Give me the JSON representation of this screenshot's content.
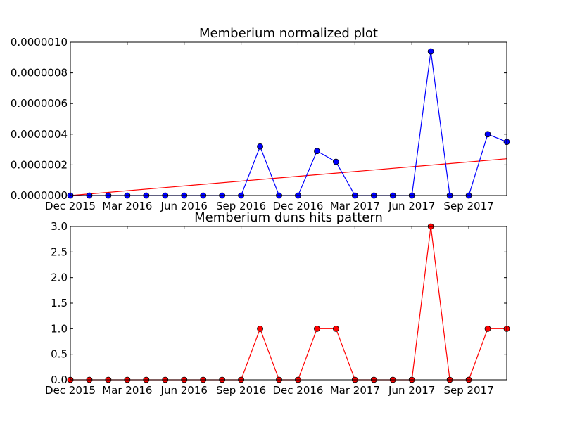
{
  "chart_data": [
    {
      "type": "line",
      "title": "Memberium normalized plot",
      "xlabel": "",
      "ylabel": "",
      "x": [
        "2015-12",
        "2016-01",
        "2016-02",
        "2016-03",
        "2016-04",
        "2016-05",
        "2016-06",
        "2016-07",
        "2016-08",
        "2016-09",
        "2016-10",
        "2016-11",
        "2016-12",
        "2017-01",
        "2017-02",
        "2017-03",
        "2017-04",
        "2017-05",
        "2017-06",
        "2017-07",
        "2017-08",
        "2017-09",
        "2017-10",
        "2017-11"
      ],
      "series": [
        {
          "color": "#0000ff",
          "marker_color": "#0000ff",
          "values": [
            0,
            0,
            0,
            0,
            0,
            0,
            0,
            0,
            0,
            0,
            3.2e-07,
            0,
            0,
            2.9e-07,
            2.2e-07,
            0,
            0,
            0,
            0,
            9.4e-07,
            0,
            0,
            4e-07,
            3.5e-07
          ]
        }
      ],
      "trend_line": {
        "color": "#ff0000",
        "start": [
          "2015-12",
          0
        ],
        "end": [
          "2017-11",
          2.4e-07
        ]
      },
      "xlim": [
        "2015-12",
        "2017-11"
      ],
      "ylim": [
        0,
        1e-06
      ],
      "x_ticks": [
        {
          "x": "2015-12",
          "label": "Dec 2015"
        },
        {
          "x": "2016-03",
          "label": "Mar 2016"
        },
        {
          "x": "2016-06",
          "label": "Jun 2016"
        },
        {
          "x": "2016-09",
          "label": "Sep 2016"
        },
        {
          "x": "2016-12",
          "label": "Dec 2016"
        },
        {
          "x": "2017-03",
          "label": "Mar 2017"
        },
        {
          "x": "2017-06",
          "label": "Jun 2017"
        },
        {
          "x": "2017-09",
          "label": "Sep 2017"
        }
      ],
      "y_ticks": [
        {
          "value": 0,
          "label": "0.0000000"
        },
        {
          "value": 2e-07,
          "label": "0.0000002"
        },
        {
          "value": 4e-07,
          "label": "0.0000004"
        },
        {
          "value": 6e-07,
          "label": "0.0000006"
        },
        {
          "value": 8e-07,
          "label": "0.0000008"
        },
        {
          "value": 1e-06,
          "label": "0.0000010"
        }
      ],
      "grid": false,
      "legend": "none"
    },
    {
      "type": "line",
      "title": "Memberium duns hits pattern",
      "xlabel": "",
      "ylabel": "",
      "x": [
        "2015-12",
        "2016-01",
        "2016-02",
        "2016-03",
        "2016-04",
        "2016-05",
        "2016-06",
        "2016-07",
        "2016-08",
        "2016-09",
        "2016-10",
        "2016-11",
        "2016-12",
        "2017-01",
        "2017-02",
        "2017-03",
        "2017-04",
        "2017-05",
        "2017-06",
        "2017-07",
        "2017-08",
        "2017-09",
        "2017-10",
        "2017-11"
      ],
      "series": [
        {
          "color": "#ff0000",
          "marker_color": "#ff0000",
          "values": [
            0,
            0,
            0,
            0,
            0,
            0,
            0,
            0,
            0,
            0,
            1,
            0,
            0,
            1,
            1,
            0,
            0,
            0,
            0,
            3,
            0,
            0,
            1,
            1
          ]
        }
      ],
      "xlim": [
        "2015-12",
        "2017-11"
      ],
      "ylim": [
        0,
        3
      ],
      "x_ticks": [
        {
          "x": "2015-12",
          "label": "Dec 2015"
        },
        {
          "x": "2016-03",
          "label": "Mar 2016"
        },
        {
          "x": "2016-06",
          "label": "Jun 2016"
        },
        {
          "x": "2016-09",
          "label": "Sep 2016"
        },
        {
          "x": "2016-12",
          "label": "Dec 2016"
        },
        {
          "x": "2017-03",
          "label": "Mar 2017"
        },
        {
          "x": "2017-06",
          "label": "Jun 2017"
        },
        {
          "x": "2017-09",
          "label": "Sep 2017"
        }
      ],
      "y_ticks": [
        {
          "value": 0,
          "label": "0.0"
        },
        {
          "value": 0.5,
          "label": "0.5"
        },
        {
          "value": 1,
          "label": "1.0"
        },
        {
          "value": 1.5,
          "label": "1.5"
        },
        {
          "value": 2,
          "label": "2.0"
        },
        {
          "value": 2.5,
          "label": "2.5"
        },
        {
          "value": 3,
          "label": "3.0"
        }
      ],
      "grid": false,
      "legend": "none"
    }
  ]
}
